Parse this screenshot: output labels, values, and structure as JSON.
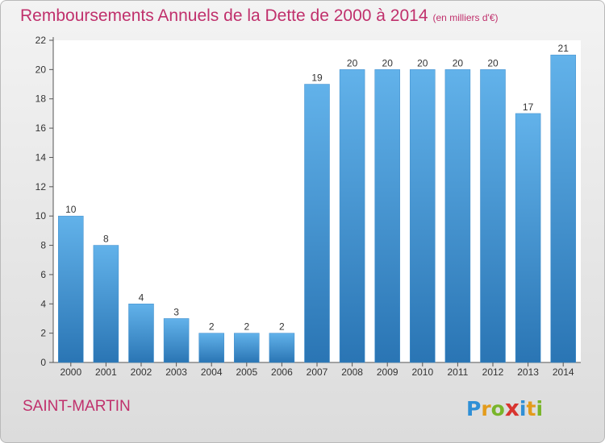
{
  "title": "Remboursements Annuels de la Dette de 2000 à 2014",
  "subtitle": "(en milliers d'€)",
  "location": "SAINT-MARTIN",
  "brand": {
    "letters": [
      "P",
      "r",
      "o",
      "x",
      "i",
      "t",
      "i"
    ],
    "colors": [
      "#2f8fd6",
      "#e39b1b",
      "#79b52a",
      "#d8342f",
      "#2f8fd6",
      "#e39b1b",
      "#79b52a"
    ]
  },
  "colors": {
    "bar_top": "#62b2ea",
    "bar_bottom": "#2a75b4",
    "accent": "#c0306c"
  },
  "chart_data": {
    "type": "bar",
    "title": "Remboursements Annuels de la Dette de 2000 à 2014",
    "subtitle": "(en milliers d'€)",
    "categories": [
      "2000",
      "2001",
      "2002",
      "2003",
      "2004",
      "2005",
      "2006",
      "2007",
      "2008",
      "2009",
      "2010",
      "2011",
      "2012",
      "2013",
      "2014"
    ],
    "values": [
      10,
      8,
      4,
      3,
      2,
      2,
      2,
      19,
      20,
      20,
      20,
      20,
      20,
      17,
      21
    ],
    "ylim": [
      0,
      22
    ],
    "yticks": [
      0,
      2,
      4,
      6,
      8,
      10,
      12,
      14,
      16,
      18,
      20,
      22
    ],
    "grid": false,
    "legend": "none"
  }
}
